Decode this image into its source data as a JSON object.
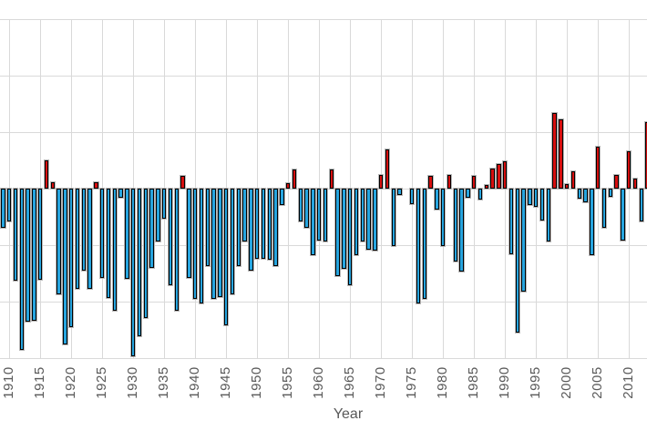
{
  "chart_data": {
    "type": "bar",
    "title": "",
    "xlabel": "Year",
    "ylabel": "",
    "x": [
      1909,
      1910,
      1911,
      1912,
      1913,
      1914,
      1915,
      1916,
      1917,
      1918,
      1919,
      1920,
      1921,
      1922,
      1923,
      1924,
      1925,
      1926,
      1927,
      1928,
      1929,
      1930,
      1931,
      1932,
      1933,
      1934,
      1935,
      1936,
      1937,
      1938,
      1939,
      1940,
      1941,
      1942,
      1943,
      1944,
      1945,
      1946,
      1947,
      1948,
      1949,
      1950,
      1951,
      1952,
      1953,
      1954,
      1955,
      1956,
      1957,
      1958,
      1959,
      1960,
      1961,
      1962,
      1963,
      1964,
      1965,
      1966,
      1967,
      1968,
      1969,
      1970,
      1971,
      1972,
      1973,
      1974,
      1975,
      1976,
      1977,
      1978,
      1979,
      1980,
      1981,
      1982,
      1983,
      1984,
      1985,
      1986,
      1987,
      1988,
      1989,
      1990,
      1991,
      1992,
      1993,
      1994,
      1995,
      1996,
      1997,
      1998,
      1999,
      2000,
      2001,
      2002,
      2003,
      2004,
      2005,
      2006,
      2007,
      2008,
      2009,
      2010,
      2011,
      2012,
      2013
    ],
    "values": [
      -0.35,
      -0.29,
      -0.82,
      -1.43,
      -1.18,
      -1.17,
      -0.81,
      0.25,
      0.06,
      -0.94,
      -1.38,
      -1.23,
      -0.89,
      -0.73,
      -0.89,
      0.06,
      -0.79,
      -0.97,
      -1.08,
      -0.08,
      -0.8,
      -1.49,
      -1.31,
      -1.15,
      -0.7,
      -0.47,
      -0.27,
      -0.86,
      -1.08,
      0.11,
      -0.79,
      -0.98,
      -1.02,
      -0.69,
      -0.98,
      -0.96,
      -1.21,
      -0.94,
      -0.69,
      -0.47,
      -0.73,
      -0.62,
      -0.62,
      -0.63,
      -0.69,
      -0.15,
      0.05,
      0.17,
      -0.29,
      -0.35,
      -0.59,
      -0.46,
      -0.47,
      0.17,
      -0.78,
      -0.71,
      -0.86,
      -0.59,
      -0.47,
      -0.54,
      -0.55,
      0.12,
      0.35,
      -0.51,
      -0.06,
      0.0,
      -0.14,
      -1.02,
      -0.98,
      0.11,
      -0.19,
      -0.51,
      0.12,
      -0.65,
      -0.74,
      -0.08,
      0.11,
      -0.1,
      0.03,
      0.18,
      0.22,
      0.24,
      -0.58,
      -1.28,
      -0.91,
      -0.15,
      -0.16,
      -0.28,
      -0.47,
      0.67,
      0.61,
      0.04,
      0.15,
      -0.09,
      -0.12,
      -0.59,
      0.37,
      -0.35,
      -0.07,
      0.12,
      -0.46,
      0.33,
      0.09,
      -0.29,
      0.59
    ],
    "bar_color_rule": "positive values red, negative values blue",
    "x_tick_labels": [
      "1910",
      "1915",
      "1920",
      "1925",
      "1930",
      "1935",
      "1940",
      "1945",
      "1950",
      "1955",
      "1960",
      "1965",
      "1970",
      "1975",
      "1980",
      "1985",
      "1990",
      "1995",
      "2000",
      "2005",
      "2010"
    ],
    "x_tick_interval": 5,
    "ylim": [
      -1.5,
      1.5
    ],
    "y_gridline_interval": 0.5,
    "grid": true,
    "legend": false,
    "colors": {
      "positive": "#d60f0f",
      "negative": "#27a5df",
      "gridline": "#d9d9d9",
      "tick_label": "#595959",
      "bar_border": "#000000",
      "background": "#ffffff"
    }
  }
}
